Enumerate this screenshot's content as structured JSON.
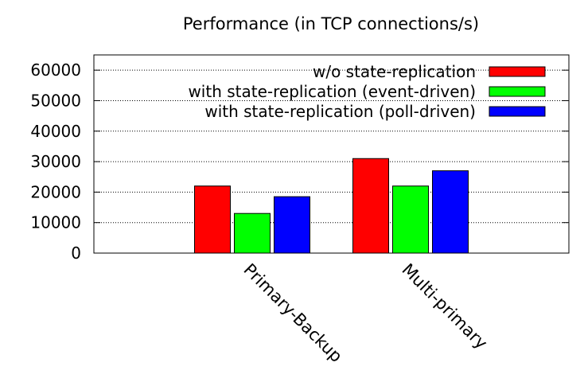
{
  "chart_data": {
    "type": "bar",
    "title": "Performance (in TCP connections/s)",
    "xlabel": "",
    "ylabel": "",
    "categories": [
      "Primary-Backup",
      "Multi-primary"
    ],
    "series": [
      {
        "name": "w/o state-replication",
        "color": "#ff0000",
        "values": [
          22000,
          31000
        ]
      },
      {
        "name": "with state-replication (event-driven)",
        "color": "#00ff00",
        "values": [
          13000,
          22000
        ]
      },
      {
        "name": "with state-replication (poll-driven)",
        "color": "#0000ff",
        "values": [
          18500,
          27000
        ]
      }
    ],
    "ylim": [
      0,
      65000
    ],
    "yticks": [
      0,
      10000,
      20000,
      30000,
      40000,
      50000,
      60000
    ],
    "grid": true,
    "legend": "top-right"
  }
}
